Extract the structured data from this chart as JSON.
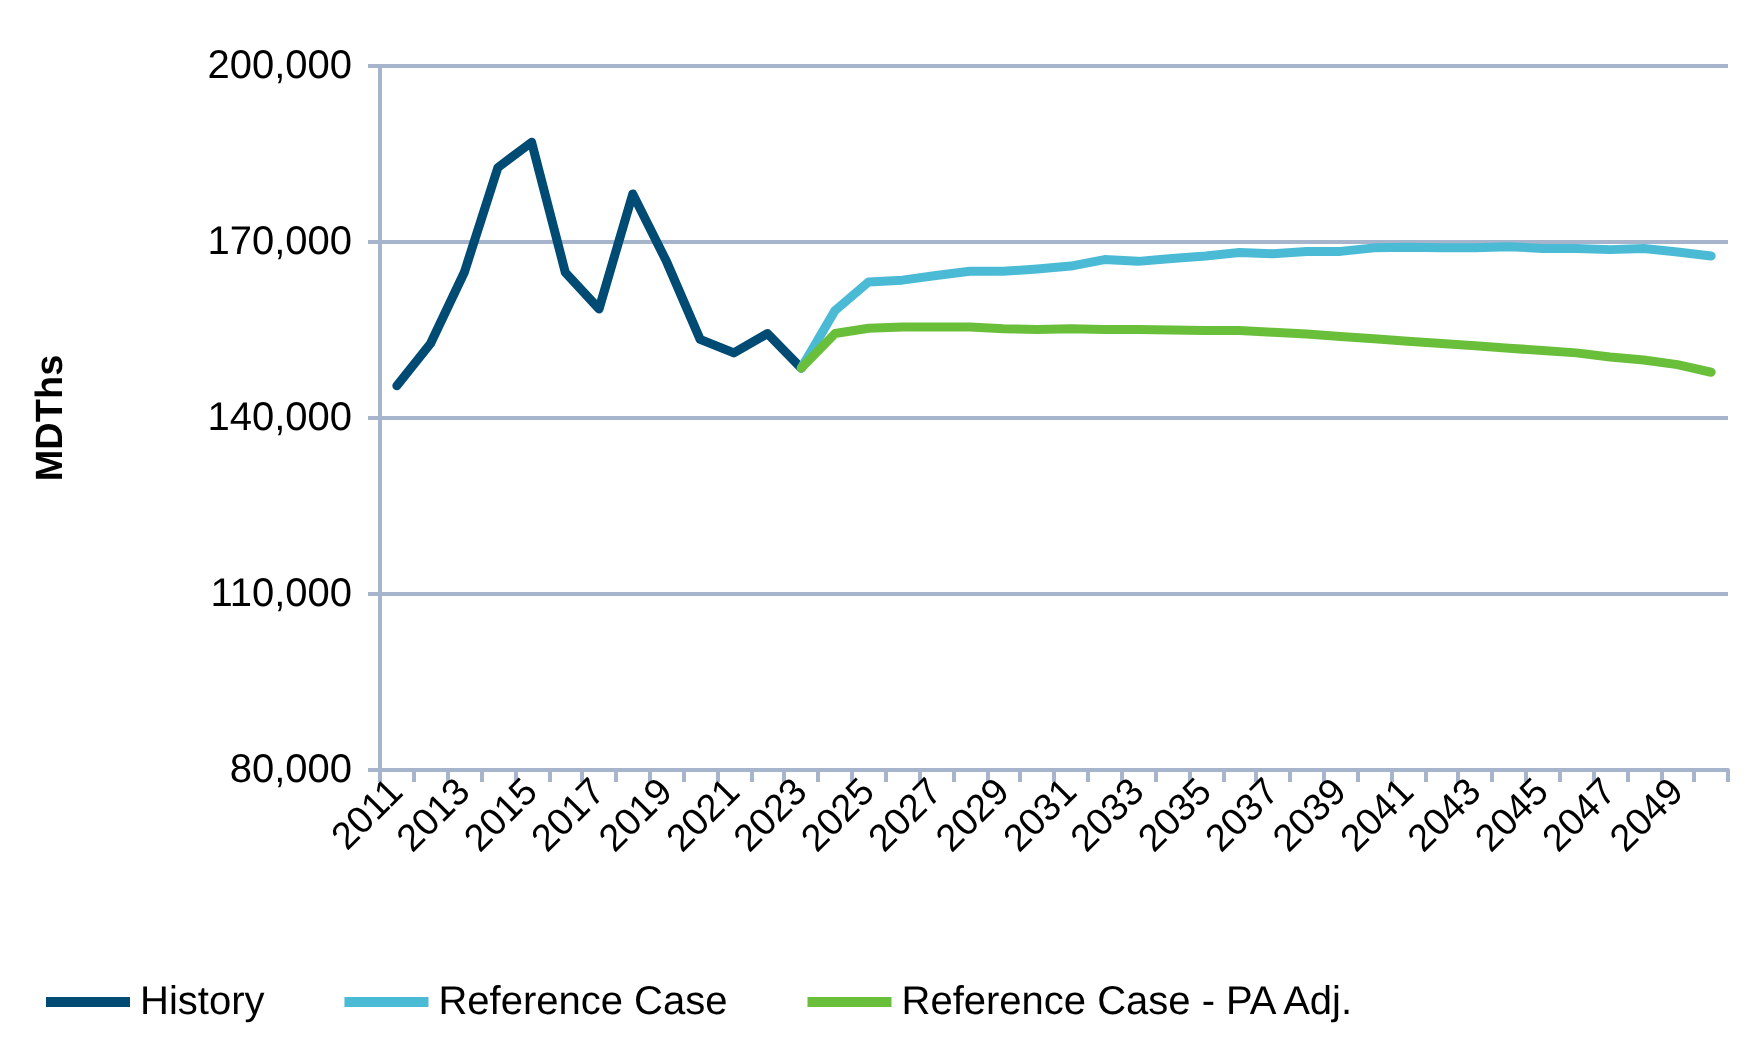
{
  "chart_data": {
    "type": "line",
    "ylabel": "MDThs",
    "categories": [
      "2011",
      null,
      "2013",
      null,
      "2015",
      null,
      "2017",
      null,
      "2019",
      null,
      "2021",
      null,
      "2023",
      null,
      "2025",
      null,
      "2027",
      null,
      "2029",
      null,
      "2031",
      null,
      "2033",
      null,
      "2035",
      null,
      "2037",
      null,
      "2039",
      null,
      "2041",
      null,
      "2043",
      null,
      "2045",
      null,
      "2047",
      null,
      "2049",
      null
    ],
    "series": [
      {
        "name": "History",
        "color": "#004b73",
        "values": [
          145500,
          152700,
          164800,
          182700,
          187000,
          164800,
          158600,
          178200,
          166700,
          153400,
          151100,
          154400,
          148500,
          null,
          null,
          null,
          null,
          null,
          null,
          null,
          null,
          null,
          null,
          null,
          null,
          null,
          null,
          null,
          null,
          null,
          null,
          null,
          null,
          null,
          null,
          null,
          null,
          null,
          null,
          null
        ]
      },
      {
        "name": "Reference Case",
        "color": "#4bbbd5",
        "values": [
          null,
          null,
          null,
          null,
          null,
          null,
          null,
          null,
          null,
          null,
          null,
          null,
          148500,
          158300,
          163200,
          163500,
          164300,
          165000,
          165000,
          165400,
          165900,
          167000,
          166700,
          167200,
          167600,
          168200,
          168000,
          168400,
          168400,
          169000,
          169100,
          169000,
          169000,
          169200,
          168900,
          168900,
          168700,
          168900,
          168300,
          167600
        ]
      },
      {
        "name": "Reference Case - PA Adj.",
        "color": "#6abf3a",
        "values": [
          null,
          null,
          null,
          null,
          null,
          null,
          null,
          null,
          null,
          null,
          null,
          null,
          148500,
          154400,
          155300,
          155500,
          155500,
          155500,
          155200,
          155100,
          155200,
          155100,
          155100,
          155000,
          154900,
          154900,
          154600,
          154300,
          153900,
          153500,
          153100,
          152700,
          152300,
          151900,
          151500,
          151100,
          150400,
          149900,
          149100,
          147800
        ]
      }
    ],
    "ylim": [
      80000,
      200000
    ],
    "yticks": [
      {
        "value": 80000,
        "label": "80,000"
      },
      {
        "value": 110000,
        "label": "110,000"
      },
      {
        "value": 140000,
        "label": "140,000"
      },
      {
        "value": 170000,
        "label": "170,000"
      },
      {
        "value": 200000,
        "label": "200,000"
      }
    ],
    "grid": "y",
    "legend": "bottom",
    "marker": "none",
    "line_style": "solid"
  }
}
